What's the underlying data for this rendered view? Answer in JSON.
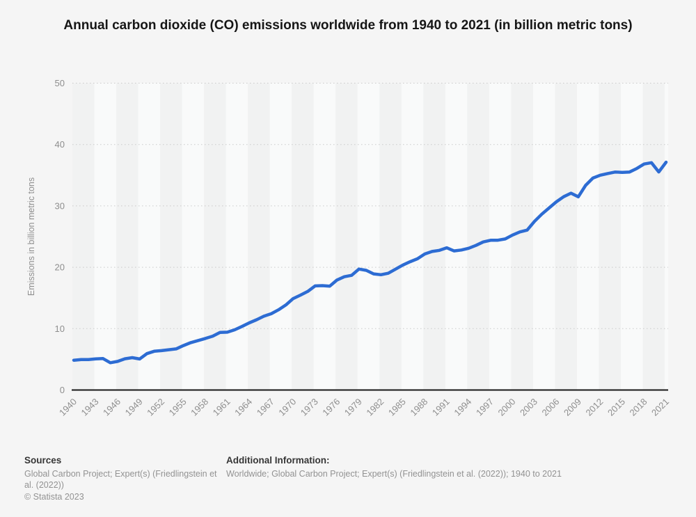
{
  "title": "Annual carbon dioxide (CO) emissions worldwide from 1940 to 2021 (in billion metric tons)",
  "chart_data": {
    "type": "line",
    "title": "Annual carbon dioxide (CO) emissions worldwide from 1940 to 2021 (in billion metric tons)",
    "xlabel": "",
    "ylabel": "Emissions in billion metric tons",
    "ylim": [
      0,
      50
    ],
    "yticks": [
      0,
      10,
      20,
      30,
      40,
      50
    ],
    "xtick_labels": [
      "1940",
      "1943",
      "1946",
      "1949",
      "1952",
      "1955",
      "1958",
      "1961",
      "1964",
      "1967",
      "1970",
      "1973",
      "1976",
      "1979",
      "1982",
      "1985",
      "1988",
      "1991",
      "1994",
      "1997",
      "2000",
      "2003",
      "2006",
      "2009",
      "2012",
      "2015",
      "2018",
      "2021"
    ],
    "grid": "horizontal-dotted",
    "legend": "none",
    "series_name": "CO2 emissions (billion metric tons)",
    "x": [
      1940,
      1941,
      1942,
      1943,
      1944,
      1945,
      1946,
      1947,
      1948,
      1949,
      1950,
      1951,
      1952,
      1953,
      1954,
      1955,
      1956,
      1957,
      1958,
      1959,
      1960,
      1961,
      1962,
      1963,
      1964,
      1965,
      1966,
      1967,
      1968,
      1969,
      1970,
      1971,
      1972,
      1973,
      1974,
      1975,
      1976,
      1977,
      1978,
      1979,
      1980,
      1981,
      1982,
      1983,
      1984,
      1985,
      1986,
      1987,
      1988,
      1989,
      1990,
      1991,
      1992,
      1993,
      1994,
      1995,
      1996,
      1997,
      1998,
      1999,
      2000,
      2001,
      2002,
      2003,
      2004,
      2005,
      2006,
      2007,
      2008,
      2009,
      2010,
      2011,
      2012,
      2013,
      2014,
      2015,
      2016,
      2017,
      2018,
      2019,
      2020,
      2021
    ],
    "values": [
      4.85,
      4.97,
      4.95,
      5.08,
      5.13,
      4.44,
      4.66,
      5.09,
      5.27,
      5.06,
      5.93,
      6.31,
      6.42,
      6.56,
      6.7,
      7.25,
      7.72,
      8.06,
      8.4,
      8.78,
      9.39,
      9.42,
      9.81,
      10.35,
      10.94,
      11.45,
      12.03,
      12.43,
      13.07,
      13.85,
      14.9,
      15.46,
      16.07,
      16.96,
      17.01,
      16.92,
      17.92,
      18.46,
      18.69,
      19.7,
      19.5,
      18.92,
      18.79,
      19.03,
      19.69,
      20.36,
      20.91,
      21.38,
      22.16,
      22.57,
      22.76,
      23.17,
      22.66,
      22.81,
      23.1,
      23.56,
      24.13,
      24.4,
      24.41,
      24.61,
      25.25,
      25.76,
      26.06,
      27.47,
      28.65,
      29.66,
      30.67,
      31.5,
      32.08,
      31.48,
      33.35,
      34.53,
      35.0,
      35.27,
      35.51,
      35.47,
      35.52,
      36.1,
      36.83,
      37.04,
      35.53,
      37.12
    ],
    "line_color": "#2d6cd3",
    "background_color": "#f5f5f5",
    "band_colors": [
      "#f1f2f2",
      "#f9fafa"
    ],
    "grid_color": "#c9c9c9",
    "axis_color": "#161616",
    "tick_label_color": "#8e8e8e"
  },
  "footer": {
    "sources_label": "Sources",
    "sources_text": "Global Carbon Project; Expert(s) (Friedlingstein et al. (2022))",
    "copyright": "© Statista 2023",
    "additional_label": "Additional Information:",
    "additional_text": "Worldwide; Global Carbon Project; Expert(s) (Friedlingstein et al. (2022)); 1940 to 2021"
  }
}
